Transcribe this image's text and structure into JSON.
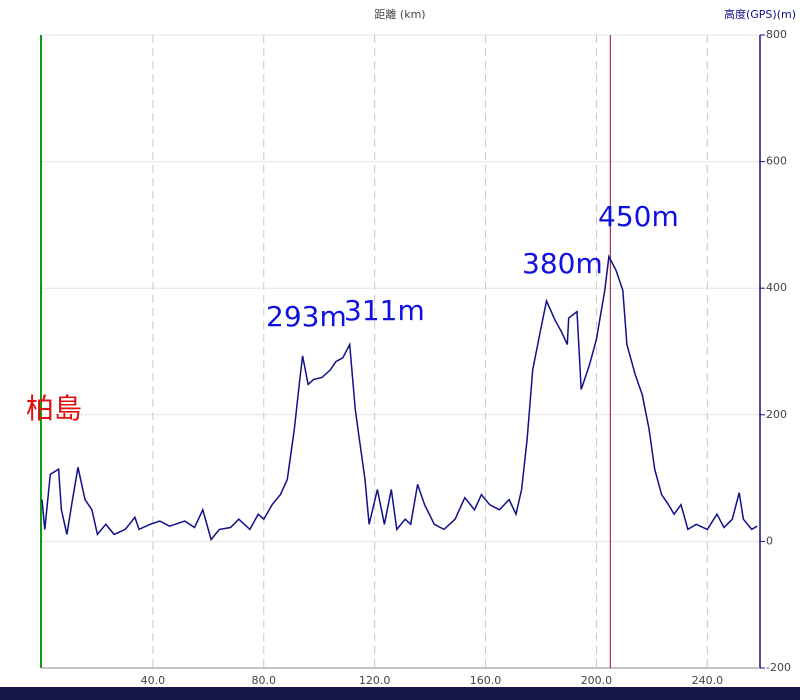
{
  "chart_data": {
    "type": "line",
    "x_label": "距離 (km)",
    "y_label": "高度(GPS)(m)",
    "xlim": [
      0,
      259
    ],
    "ylim": [
      -200,
      800
    ],
    "xticks": [
      {
        "value": 40,
        "label": "40.0"
      },
      {
        "value": 80,
        "label": "80.0"
      },
      {
        "value": 120,
        "label": "120.0"
      },
      {
        "value": 160,
        "label": "160.0"
      },
      {
        "value": 200,
        "label": "200.0"
      },
      {
        "value": 240,
        "label": "240.0"
      }
    ],
    "yticks": [
      -200,
      0,
      200,
      400,
      600,
      800
    ],
    "grid": true,
    "cursor_x": 205,
    "x": [
      0,
      1,
      3,
      6,
      7,
      9,
      11,
      13,
      15.5,
      18,
      20,
      23,
      26,
      30,
      33.5,
      35,
      39,
      42.5,
      46,
      51.5,
      55,
      58,
      61,
      64,
      68,
      71,
      75,
      78,
      80,
      83,
      86,
      88.5,
      91,
      93,
      94,
      96,
      98,
      101,
      104,
      106,
      108.5,
      111,
      113,
      114.5,
      116.5,
      118,
      121,
      123.5,
      126,
      128,
      131,
      133,
      135.5,
      138,
      141.5,
      145,
      149,
      152.5,
      156,
      158.5,
      161.5,
      165,
      168.5,
      171,
      173,
      175,
      177,
      179.5,
      182,
      185,
      187.5,
      189.5,
      190,
      193,
      194.5,
      197.5,
      200,
      203,
      204.5,
      207,
      209.5,
      211,
      214,
      216.5,
      219,
      221,
      223.5,
      226,
      228,
      230.5,
      233,
      236,
      240,
      243.5,
      246,
      249,
      251.5,
      253,
      256,
      258
    ],
    "series": [
      {
        "name": "高度",
        "color": "#10108a",
        "values": [
          66,
          19,
          106,
          114,
          50,
          11,
          66,
          117,
          66,
          50,
          11,
          27,
          11,
          19,
          38,
          19,
          27,
          32,
          24,
          32,
          22,
          50,
          3,
          19,
          22,
          35,
          19,
          43,
          35,
          58,
          74,
          98,
          177,
          256,
          293,
          248,
          256,
          259,
          271,
          284,
          290,
          311,
          208,
          161,
          98,
          27,
          82,
          27,
          82,
          19,
          35,
          27,
          90,
          58,
          27,
          19,
          35,
          69,
          50,
          74,
          58,
          50,
          66,
          43,
          82,
          161,
          271,
          326,
          380,
          350,
          330,
          311,
          353,
          363,
          240,
          279,
          319,
          397,
          450,
          429,
          397,
          311,
          263,
          232,
          177,
          114,
          74,
          58,
          43,
          58,
          19,
          27,
          19,
          43,
          22,
          35,
          77,
          35,
          19,
          24
        ]
      }
    ],
    "annotations": [
      {
        "text": "柏島",
        "color": "#e01010"
      },
      {
        "text": "293m",
        "color": "#1010e0"
      },
      {
        "text": "311m",
        "color": "#1010e0"
      },
      {
        "text": "380m",
        "color": "#1010e0"
      },
      {
        "text": "450m",
        "color": "#1010e0"
      }
    ]
  }
}
